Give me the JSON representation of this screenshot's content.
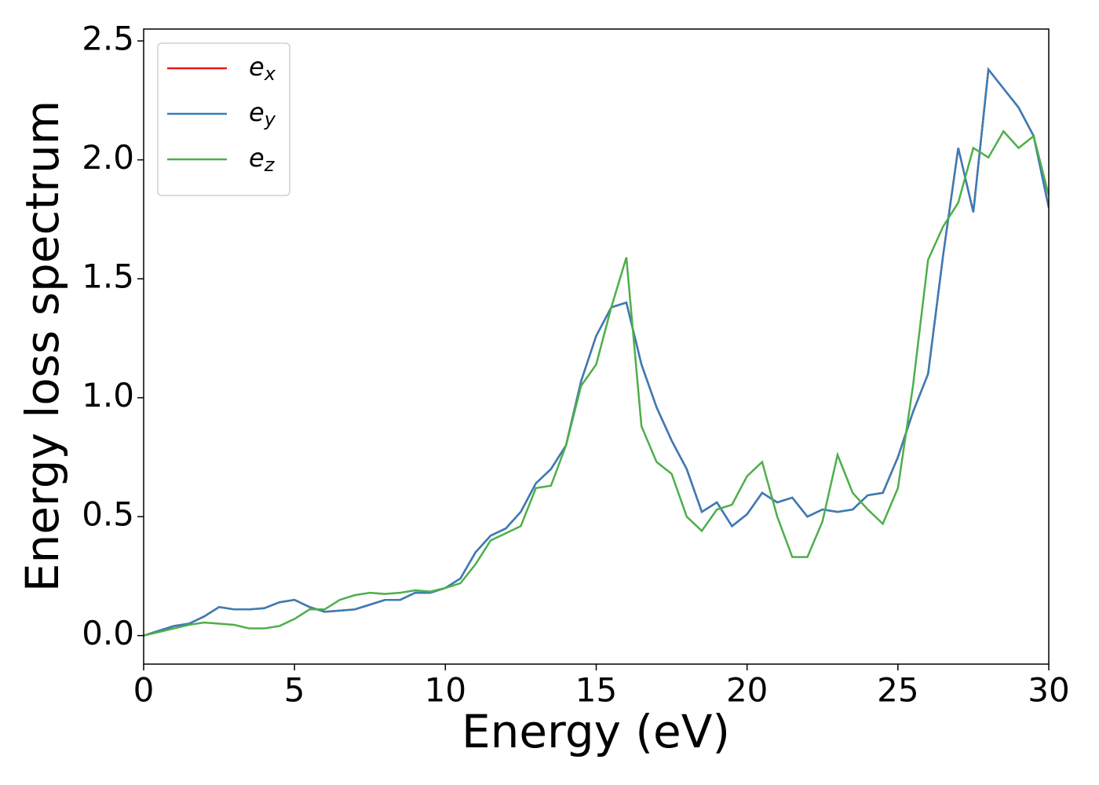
{
  "chart_data": {
    "type": "line",
    "xlabel": "Energy (eV)",
    "ylabel": "Energy loss spectrum",
    "x": [
      0,
      0.5,
      1,
      1.5,
      2,
      2.5,
      3,
      3.5,
      4,
      4.5,
      5,
      5.5,
      6,
      6.5,
      7,
      7.5,
      8,
      8.5,
      9,
      9.5,
      10,
      10.5,
      11,
      11.5,
      12,
      12.5,
      13,
      13.5,
      14,
      14.5,
      15,
      15.5,
      16,
      16.5,
      17,
      17.5,
      18,
      18.5,
      19,
      19.5,
      20,
      20.5,
      21,
      21.5,
      22,
      22.5,
      23,
      23.5,
      24,
      24.5,
      25,
      25.5,
      26,
      26.5,
      27,
      27.5,
      28,
      28.5,
      29,
      29.5,
      30
    ],
    "series": [
      {
        "name": "ex",
        "color": "#e41a1c",
        "values": [
          0,
          0.02,
          0.04,
          0.05,
          0.08,
          0.12,
          0.11,
          0.11,
          0.115,
          0.14,
          0.15,
          0.12,
          0.1,
          0.105,
          0.11,
          0.13,
          0.15,
          0.15,
          0.18,
          0.18,
          0.2,
          0.24,
          0.35,
          0.42,
          0.45,
          0.52,
          0.64,
          0.7,
          0.8,
          1.07,
          1.26,
          1.38,
          1.4,
          1.14,
          0.96,
          0.82,
          0.7,
          0.52,
          0.56,
          0.46,
          0.51,
          0.6,
          0.56,
          0.58,
          0.5,
          0.53,
          0.52,
          0.53,
          0.59,
          0.6,
          0.75,
          0.94,
          1.1,
          1.6,
          2.05,
          1.78,
          2.38,
          2.3,
          2.22,
          2.1,
          1.8
        ]
      },
      {
        "name": "ey",
        "color": "#377eb8",
        "values": [
          0,
          0.02,
          0.04,
          0.05,
          0.08,
          0.12,
          0.11,
          0.11,
          0.115,
          0.14,
          0.15,
          0.12,
          0.1,
          0.105,
          0.11,
          0.13,
          0.15,
          0.15,
          0.18,
          0.18,
          0.2,
          0.24,
          0.35,
          0.42,
          0.45,
          0.52,
          0.64,
          0.7,
          0.8,
          1.07,
          1.26,
          1.38,
          1.4,
          1.14,
          0.96,
          0.82,
          0.7,
          0.52,
          0.56,
          0.46,
          0.51,
          0.6,
          0.56,
          0.58,
          0.5,
          0.53,
          0.52,
          0.53,
          0.59,
          0.6,
          0.75,
          0.94,
          1.1,
          1.6,
          2.05,
          1.78,
          2.38,
          2.3,
          2.22,
          2.1,
          1.8
        ]
      },
      {
        "name": "ez",
        "color": "#4daf4a",
        "values": [
          0,
          0.015,
          0.03,
          0.045,
          0.055,
          0.05,
          0.045,
          0.03,
          0.03,
          0.04,
          0.07,
          0.11,
          0.11,
          0.15,
          0.17,
          0.18,
          0.175,
          0.18,
          0.19,
          0.185,
          0.2,
          0.22,
          0.3,
          0.4,
          0.43,
          0.46,
          0.62,
          0.63,
          0.8,
          1.05,
          1.14,
          1.38,
          1.59,
          0.88,
          0.73,
          0.68,
          0.5,
          0.44,
          0.53,
          0.55,
          0.67,
          0.73,
          0.5,
          0.33,
          0.33,
          0.48,
          0.76,
          0.6,
          0.53,
          0.47,
          0.62,
          1.05,
          1.58,
          1.72,
          1.82,
          2.05,
          2.01,
          2.12,
          2.05,
          2.1,
          1.85
        ]
      }
    ],
    "xlim": [
      0,
      30
    ],
    "ylim": [
      -0.12,
      2.55
    ],
    "xticks": [
      0,
      5,
      10,
      15,
      20,
      25,
      30
    ],
    "yticks": [
      {
        "value": 0,
        "label": "0.0"
      },
      0.5,
      {
        "value": 1,
        "label": "1.0"
      },
      1.5,
      {
        "value": 2,
        "label": "2.0"
      },
      2.5
    ],
    "legend": "upper left"
  }
}
